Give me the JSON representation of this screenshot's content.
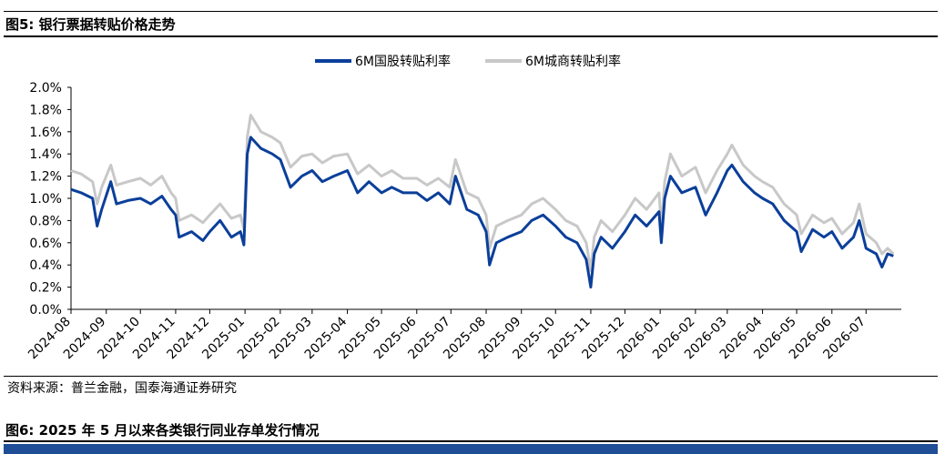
{
  "page": {
    "figure_title": "图5:  银行票据转贴价格走势",
    "source_note": "资料来源：普兰金融，国泰海通证券研究",
    "next_figure_title": "图6:  2025 年 5 月以来各类银行同业存单发行情况"
  },
  "colors": {
    "series_primary": "#0b3f9a",
    "series_secondary": "#c8c8c8",
    "table_header": "#1f4e96"
  },
  "chart_data": {
    "type": "line",
    "title": "",
    "xlabel": "",
    "ylabel": "",
    "ylim": [
      0,
      2.0
    ],
    "y_ticks": [
      "0.0%",
      "0.2%",
      "0.4%",
      "0.6%",
      "0.8%",
      "1.0%",
      "1.2%",
      "1.4%",
      "1.6%",
      "1.8%",
      "2.0%"
    ],
    "x_ticks": [
      "2024-08",
      "2024-09",
      "2024-10",
      "2024-11",
      "2024-12",
      "2025-01",
      "2025-02",
      "2025-03",
      "2025-04",
      "2025-05",
      "2025-06",
      "2025-07",
      "2025-08",
      "2025-09",
      "2025-10",
      "2025-11",
      "2025-12",
      "2026-01",
      "2026-02",
      "2026-03",
      "2026-04",
      "2026-05",
      "2026-06",
      "2026-07"
    ],
    "grid": false,
    "legend_position": "top",
    "series": [
      {
        "name": "6M国股转贴利率",
        "color": "#0b3f9a",
        "x": [
          "2024-08-01",
          "2024-08-10",
          "2024-08-20",
          "2024-08-24",
          "2024-08-28",
          "2024-09-05",
          "2024-09-10",
          "2024-09-20",
          "2024-10-01",
          "2024-10-10",
          "2024-10-20",
          "2024-10-28",
          "2024-11-01",
          "2024-11-04",
          "2024-11-15",
          "2024-11-25",
          "2024-12-01",
          "2024-12-10",
          "2024-12-20",
          "2024-12-28",
          "2024-12-31",
          "2025-01-03",
          "2025-01-06",
          "2025-01-15",
          "2025-01-25",
          "2025-02-01",
          "2025-02-10",
          "2025-02-20",
          "2025-03-01",
          "2025-03-10",
          "2025-03-20",
          "2025-04-01",
          "2025-04-10",
          "2025-04-20",
          "2025-05-01",
          "2025-05-10",
          "2025-05-20",
          "2025-06-01",
          "2025-06-10",
          "2025-06-20",
          "2025-06-30",
          "2025-07-05",
          "2025-07-15",
          "2025-07-25",
          "2025-08-01",
          "2025-08-04",
          "2025-08-10",
          "2025-08-20",
          "2025-09-01",
          "2025-09-10",
          "2025-09-20",
          "2025-10-01",
          "2025-10-10",
          "2025-10-20",
          "2025-10-28",
          "2025-11-01",
          "2025-11-04",
          "2025-11-10",
          "2025-11-20",
          "2025-12-01",
          "2025-12-10",
          "2025-12-20",
          "2025-12-31",
          "2026-01-02",
          "2026-01-05",
          "2026-01-10",
          "2026-01-20",
          "2026-02-01",
          "2026-02-10",
          "2026-02-20",
          "2026-03-01",
          "2026-03-05",
          "2026-03-15",
          "2026-03-25",
          "2026-04-01",
          "2026-04-10",
          "2026-04-20",
          "2026-05-01",
          "2026-05-05",
          "2026-05-15",
          "2026-05-25",
          "2026-06-01",
          "2026-06-10",
          "2026-06-20",
          "2026-06-25",
          "2026-07-01",
          "2026-07-10",
          "2026-07-15",
          "2026-07-20",
          "2026-07-25"
        ],
        "values": [
          1.08,
          1.05,
          1.0,
          0.75,
          0.9,
          1.15,
          0.95,
          0.98,
          1.0,
          0.95,
          1.02,
          0.9,
          0.85,
          0.65,
          0.7,
          0.62,
          0.7,
          0.8,
          0.65,
          0.7,
          0.58,
          1.4,
          1.55,
          1.45,
          1.4,
          1.35,
          1.1,
          1.2,
          1.25,
          1.15,
          1.2,
          1.25,
          1.05,
          1.15,
          1.05,
          1.1,
          1.05,
          1.05,
          0.98,
          1.05,
          0.95,
          1.2,
          0.9,
          0.85,
          0.7,
          0.4,
          0.6,
          0.65,
          0.7,
          0.8,
          0.85,
          0.75,
          0.65,
          0.6,
          0.45,
          0.2,
          0.5,
          0.65,
          0.55,
          0.7,
          0.85,
          0.75,
          0.88,
          0.6,
          1.0,
          1.2,
          1.05,
          1.1,
          0.85,
          1.05,
          1.25,
          1.3,
          1.15,
          1.05,
          1.0,
          0.95,
          0.8,
          0.7,
          0.52,
          0.72,
          0.65,
          0.7,
          0.55,
          0.65,
          0.8,
          0.55,
          0.5,
          0.38,
          0.5,
          0.48
        ]
      },
      {
        "name": "6M城商转贴利率",
        "color": "#c8c8c8",
        "x": [
          "2024-08-01",
          "2024-08-10",
          "2024-08-20",
          "2024-08-24",
          "2024-08-28",
          "2024-09-05",
          "2024-09-10",
          "2024-09-20",
          "2024-10-01",
          "2024-10-10",
          "2024-10-20",
          "2024-10-28",
          "2024-11-01",
          "2024-11-04",
          "2024-11-15",
          "2024-11-25",
          "2024-12-01",
          "2024-12-10",
          "2024-12-20",
          "2024-12-28",
          "2024-12-31",
          "2025-01-03",
          "2025-01-06",
          "2025-01-15",
          "2025-01-25",
          "2025-02-01",
          "2025-02-10",
          "2025-02-20",
          "2025-03-01",
          "2025-03-10",
          "2025-03-20",
          "2025-04-01",
          "2025-04-10",
          "2025-04-20",
          "2025-05-01",
          "2025-05-10",
          "2025-05-20",
          "2025-06-01",
          "2025-06-10",
          "2025-06-20",
          "2025-06-30",
          "2025-07-05",
          "2025-07-15",
          "2025-07-25",
          "2025-08-01",
          "2025-08-04",
          "2025-08-10",
          "2025-08-20",
          "2025-09-01",
          "2025-09-10",
          "2025-09-20",
          "2025-10-01",
          "2025-10-10",
          "2025-10-20",
          "2025-10-28",
          "2025-11-01",
          "2025-11-04",
          "2025-11-10",
          "2025-11-20",
          "2025-12-01",
          "2025-12-10",
          "2025-12-20",
          "2025-12-31",
          "2026-01-02",
          "2026-01-05",
          "2026-01-10",
          "2026-01-20",
          "2026-02-01",
          "2026-02-10",
          "2026-02-20",
          "2026-03-01",
          "2026-03-05",
          "2026-03-15",
          "2026-03-25",
          "2026-04-01",
          "2026-04-10",
          "2026-04-20",
          "2026-05-01",
          "2026-05-05",
          "2026-05-15",
          "2026-05-25",
          "2026-06-01",
          "2026-06-10",
          "2026-06-20",
          "2026-06-25",
          "2026-07-01",
          "2026-07-10",
          "2026-07-15",
          "2026-07-20",
          "2026-07-25"
        ],
        "values": [
          1.25,
          1.22,
          1.15,
          0.95,
          1.1,
          1.3,
          1.12,
          1.15,
          1.18,
          1.12,
          1.2,
          1.05,
          1.0,
          0.8,
          0.85,
          0.78,
          0.85,
          0.95,
          0.82,
          0.85,
          0.72,
          1.55,
          1.75,
          1.6,
          1.55,
          1.5,
          1.28,
          1.38,
          1.4,
          1.32,
          1.38,
          1.4,
          1.22,
          1.3,
          1.2,
          1.25,
          1.18,
          1.18,
          1.12,
          1.18,
          1.1,
          1.35,
          1.05,
          1.0,
          0.85,
          0.55,
          0.75,
          0.8,
          0.85,
          0.95,
          1.0,
          0.9,
          0.8,
          0.75,
          0.6,
          0.35,
          0.65,
          0.8,
          0.7,
          0.85,
          1.0,
          0.9,
          1.05,
          0.75,
          1.15,
          1.4,
          1.2,
          1.28,
          1.05,
          1.25,
          1.4,
          1.48,
          1.3,
          1.2,
          1.15,
          1.1,
          0.95,
          0.85,
          0.68,
          0.85,
          0.78,
          0.82,
          0.68,
          0.78,
          0.95,
          0.68,
          0.6,
          0.5,
          0.55,
          0.5
        ]
      }
    ]
  }
}
